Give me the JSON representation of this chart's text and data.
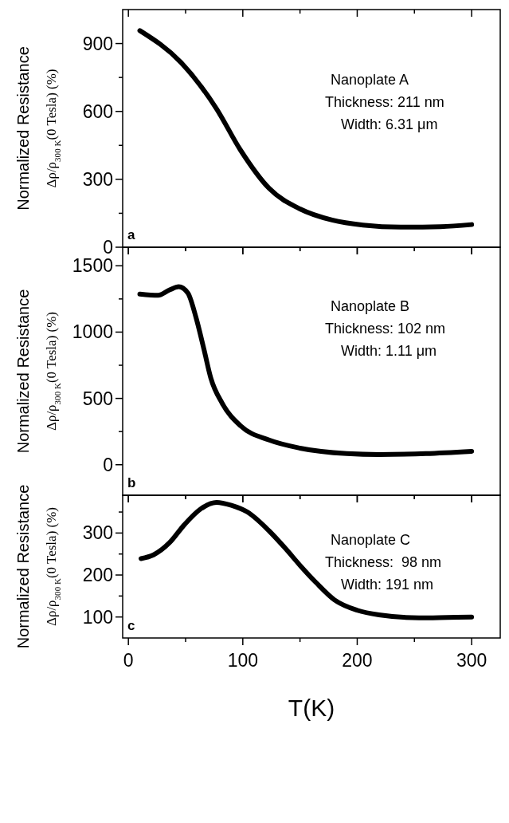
{
  "chart_data": [
    {
      "type": "line",
      "xlabel": null,
      "ylabel": "Normalized Resistance\nΔρ/ρ$_{300 K}$(0 Tesla) (%)",
      "annotations": [
        "a",
        "Nanoplate A",
        "Thickness: 211 nm",
        "Width: 6.31 μm"
      ],
      "xlim": [
        -5,
        325
      ],
      "xticks": [
        0,
        {
          "value": 50,
          "label": null
        },
        100,
        {
          "value": 150,
          "label": null
        },
        200,
        {
          "value": 250,
          "label": null
        },
        300
      ],
      "ylim": [
        0,
        1050
      ],
      "yticks": [
        0,
        {
          "value": 150,
          "label": null
        },
        300,
        {
          "value": 450,
          "label": null
        },
        600,
        {
          "value": 750,
          "label": null
        },
        900
      ],
      "tick_labels": "y",
      "line_style": "solid",
      "series": [
        {
          "color": "#000000",
          "x": [
            10,
            46,
            77,
            98,
            123,
            150,
            178,
            205,
            238,
            273,
            300
          ],
          "values": [
            957,
            816,
            612,
            429,
            260,
            169,
            120,
            98,
            89,
            91,
            100
          ]
        }
      ]
    },
    {
      "type": "line",
      "ylabel": "Normalized Resistance\nΔρ/ρ$_{300 K}$(0 Tesla) (%)",
      "annotations": [
        "b",
        "Nanoplate B",
        "Thickness: 102 nm",
        "Width: 1.11 μm"
      ],
      "xlim": [
        -5,
        325
      ],
      "xticks": [
        0,
        {
          "value": 50,
          "label": null
        },
        100,
        {
          "value": 150,
          "label": null
        },
        200,
        {
          "value": 250,
          "label": null
        },
        300
      ],
      "ylim": [
        -230,
        1640
      ],
      "yticks": [
        0,
        {
          "value": 250,
          "label": null
        },
        500,
        {
          "value": 750,
          "label": null
        },
        1000,
        {
          "value": 1250,
          "label": null
        },
        1500
      ],
      "tick_labels": "y",
      "line_style": "solid",
      "series": [
        {
          "color": "#000000",
          "x": [
            10,
            26,
            36,
            44,
            52,
            59,
            66,
            72,
            82,
            98,
            123,
            150,
            191,
            219,
            260,
            300
          ],
          "values": [
            1287,
            1277,
            1318,
            1342,
            1294,
            1113,
            872,
            655,
            463,
            294,
            186,
            125,
            84,
            77,
            84,
            101
          ]
        }
      ]
    },
    {
      "type": "line",
      "xlabel": "T(K)",
      "ylabel": "Normalized Resistance\nΔρ/ρ$_{300 K}$(0 Tesla) (%)",
      "annotations": [
        "c",
        "Nanoplate C",
        "Thickness:  98 nm",
        "Width: 191 nm"
      ],
      "xlim": [
        -5,
        325
      ],
      "xticks": [
        0,
        {
          "value": 50,
          "label": null
        },
        100,
        {
          "value": 150,
          "label": null
        },
        200,
        {
          "value": 250,
          "label": null
        },
        300
      ],
      "ylim": [
        50,
        390
      ],
      "yticks": [
        100,
        {
          "value": 150,
          "label": null
        },
        200,
        {
          "value": 250,
          "label": null
        },
        300,
        {
          "value": 350,
          "label": null
        }
      ],
      "line_style": "solid",
      "series": [
        {
          "color": "#000000",
          "x": [
            11,
            22,
            36,
            49,
            63,
            77,
            90,
            104,
            123,
            137,
            150,
            164,
            180,
            200,
            219,
            254,
            279,
            300
          ],
          "values": [
            239,
            248,
            277,
            320,
            357,
            373,
            366,
            350,
            305,
            264,
            223,
            182,
            141,
            116,
            105,
            98,
            99,
            100
          ]
        }
      ]
    }
  ]
}
